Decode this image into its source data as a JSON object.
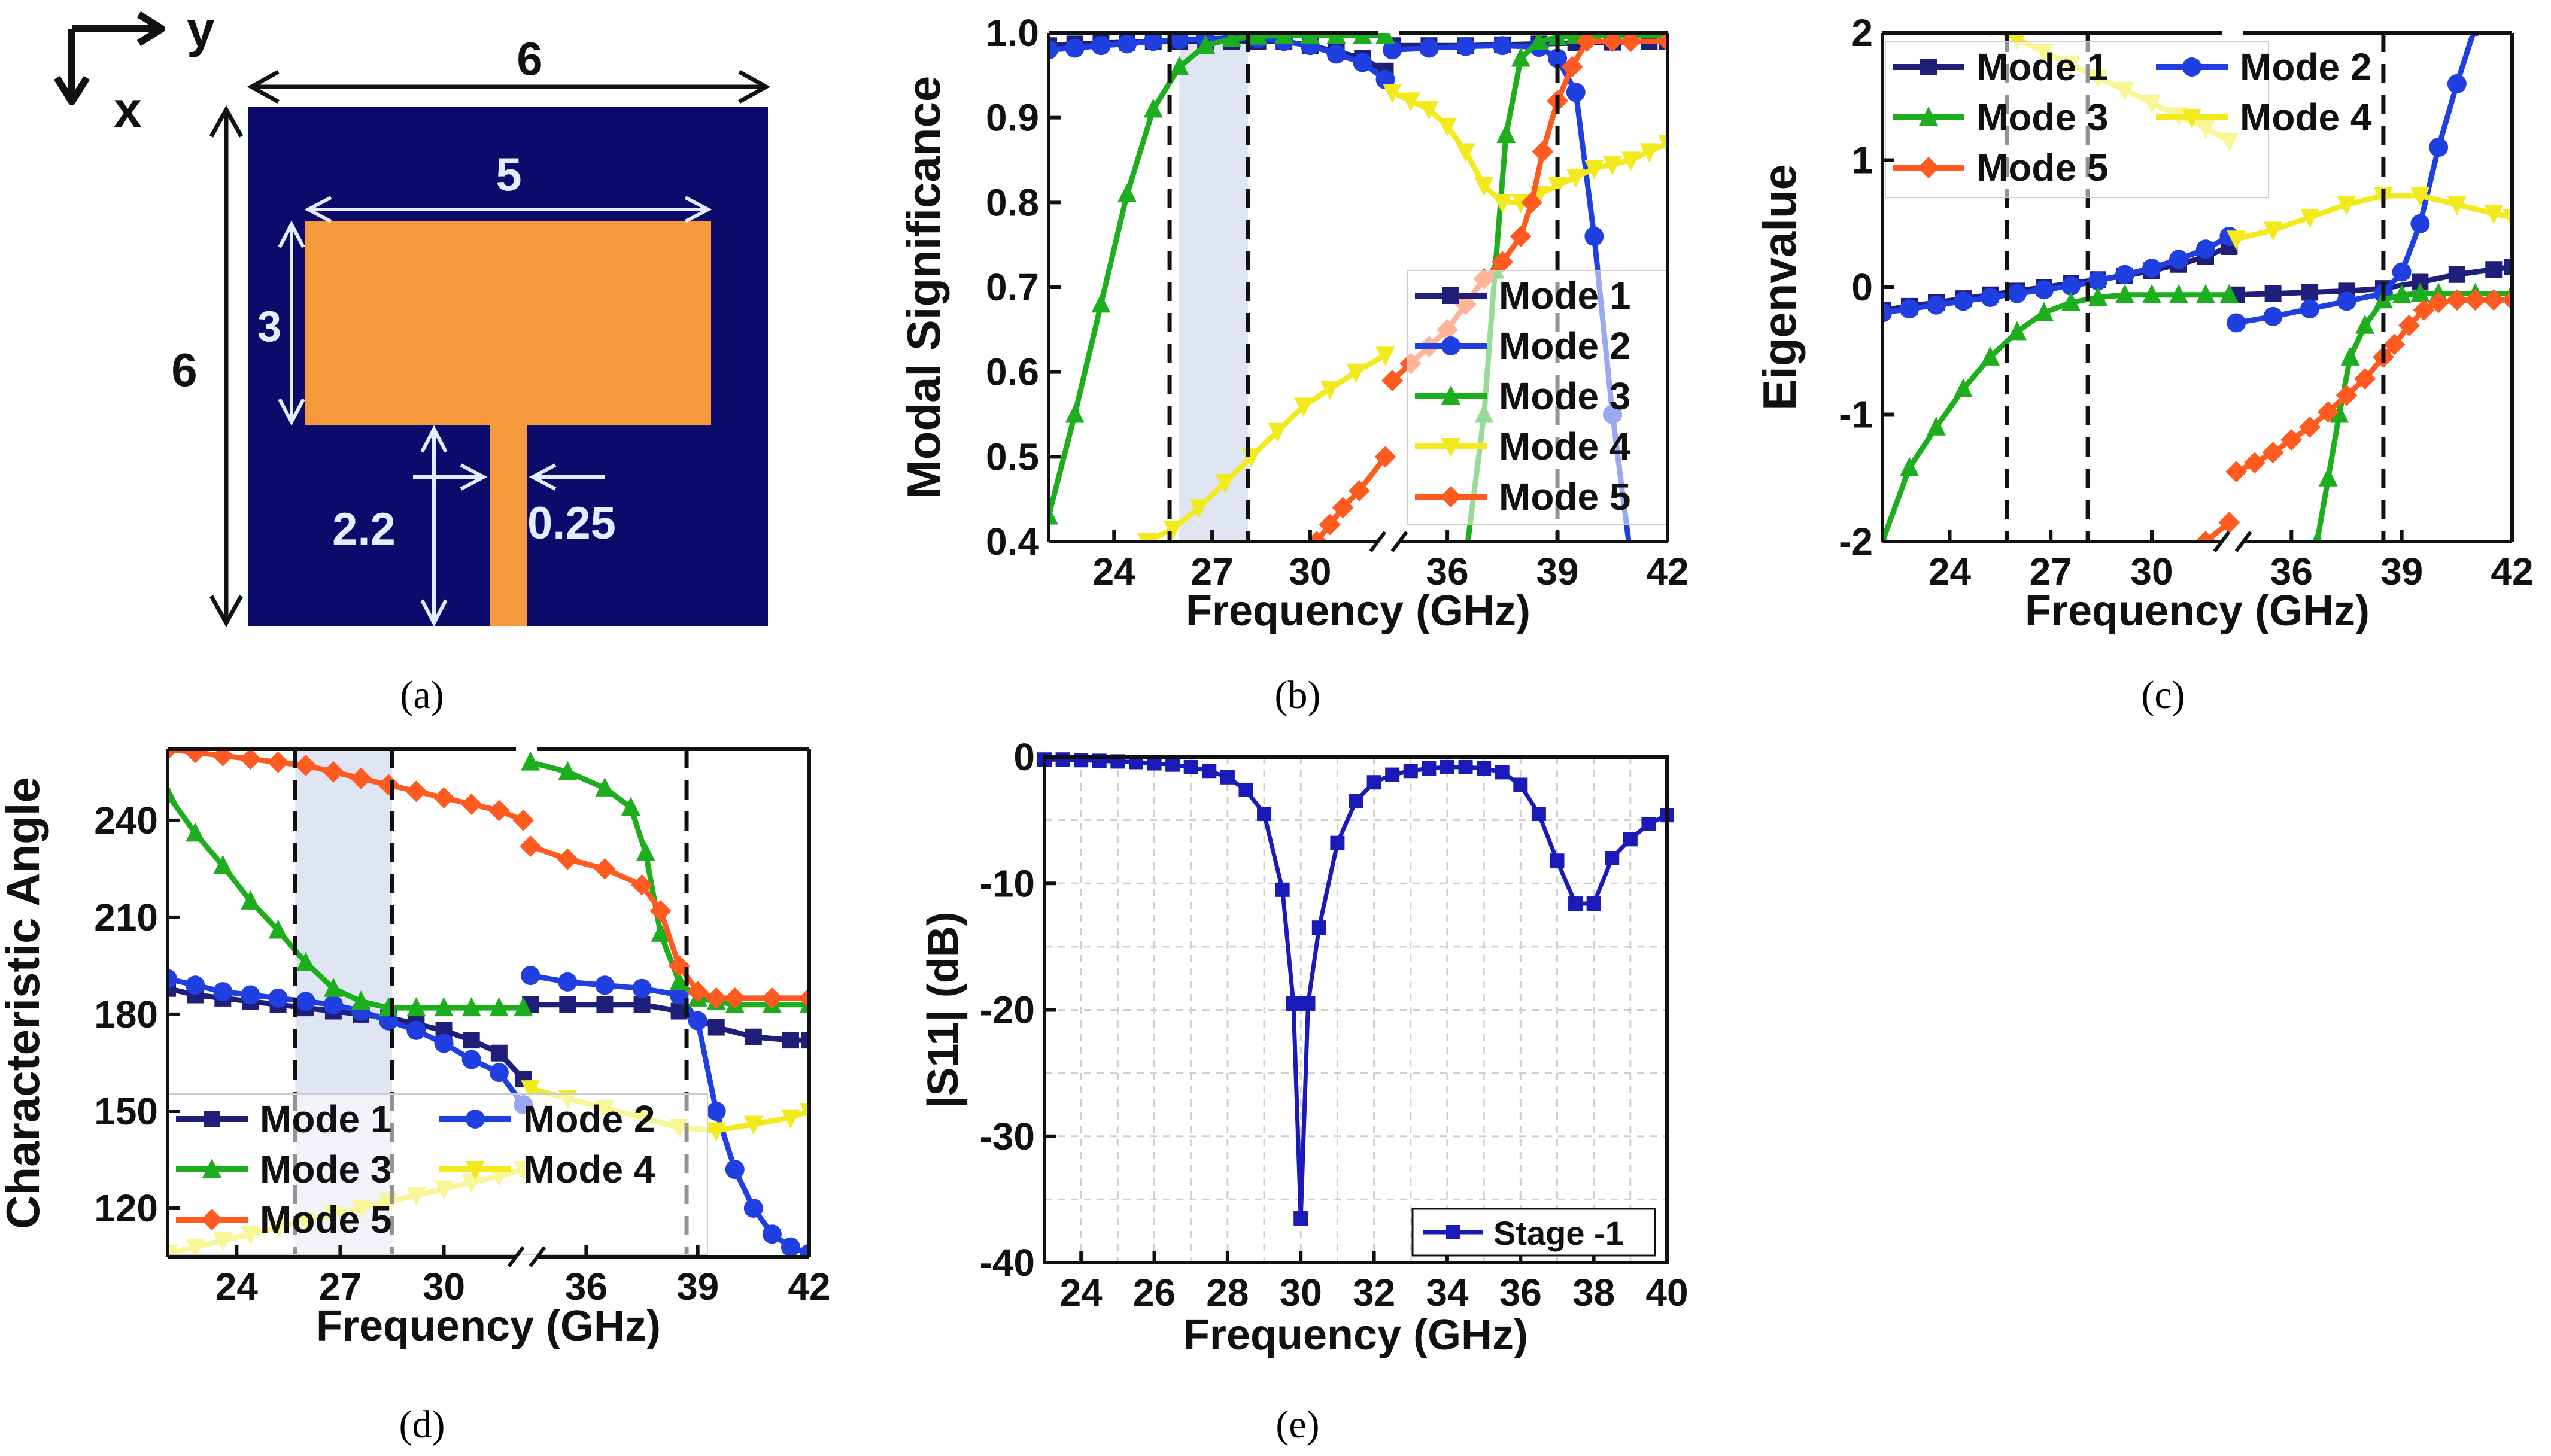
{
  "figure": {
    "panel_labels": [
      "(a)",
      "(b)",
      "(c)",
      "(d)",
      "(e)"
    ]
  },
  "antenna": {
    "axis_y": "y",
    "axis_x": "x",
    "dim_substrate_width": "6",
    "dim_substrate_height": "6",
    "dim_patch_width": "5",
    "dim_patch_height": "3",
    "dim_feed_length": "2.2",
    "dim_feed_width": "0.25",
    "colors": {
      "substrate": "#0b0b6b",
      "copper": "#f7983a",
      "dimension": "#ffffff"
    }
  },
  "colors": {
    "mode1": "#1f1f7a",
    "mode2": "#1f3fe0",
    "mode3": "#1cae1c",
    "mode4": "#f2ea1c",
    "mode5": "#ff5a1f",
    "s11": "#1a1ab8",
    "shade": "#d9e0f0"
  },
  "chart_data": [
    {
      "panel": "b",
      "type": "line",
      "xlabel": "Frequency (GHz)",
      "ylabel": "Modal Significance",
      "ylim": [
        0.4,
        1.0
      ],
      "xticks": [
        "24",
        "27",
        "30",
        "36",
        "39",
        "42"
      ],
      "yticks": [
        "0.4",
        "0.5",
        "0.6",
        "0.7",
        "0.8",
        "0.9",
        "1.0"
      ],
      "legend": [
        "Mode 1",
        "Mode 2",
        "Mode 3",
        "Mode 4",
        "Mode 5"
      ],
      "shade_range": [
        26.0,
        28.1
      ],
      "dashed_lines": [
        25.7,
        28.1,
        39.0
      ],
      "series": [
        {
          "name": "Mode 1",
          "x": [
            22,
            22.8,
            23.6,
            24.4,
            25.2,
            26,
            26.8,
            27.6,
            28.4,
            29.2,
            30,
            30.8,
            31.6,
            32.3,
            34.5,
            35.5,
            36.5,
            37.5,
            38.5,
            39.5,
            40.5,
            41.5,
            42
          ],
          "y": [
            0.985,
            0.987,
            0.988,
            0.989,
            0.99,
            0.99,
            0.99,
            0.99,
            0.99,
            0.99,
            0.985,
            0.978,
            0.97,
            0.955,
            0.985,
            0.985,
            0.985,
            0.986,
            0.987,
            0.988,
            0.989,
            0.99,
            0.99
          ]
        },
        {
          "name": "Mode 2",
          "x": [
            22,
            22.8,
            23.6,
            24.4,
            25.2,
            26,
            26.8,
            27.6,
            28.4,
            29.2,
            30,
            30.8,
            31.6,
            32.3,
            34.5,
            35.5,
            36.5,
            37.5,
            38.5,
            39.0,
            39.5,
            40,
            40.5,
            41
          ],
          "y": [
            0.98,
            0.982,
            0.985,
            0.987,
            0.99,
            0.992,
            0.993,
            0.994,
            0.993,
            0.99,
            0.985,
            0.975,
            0.965,
            0.945,
            0.98,
            0.982,
            0.984,
            0.985,
            0.983,
            0.97,
            0.93,
            0.76,
            0.55,
            0.38
          ]
        },
        {
          "name": "Mode 3",
          "x": [
            22,
            22.8,
            23.6,
            24.4,
            25.2,
            26,
            26.8,
            27.6,
            28.4,
            29.2,
            30,
            30.8,
            31.6,
            32.3,
            36.5,
            37,
            37.3,
            37.6,
            38,
            38.5,
            39,
            39.5,
            40,
            41,
            42
          ],
          "y": [
            0.43,
            0.55,
            0.68,
            0.81,
            0.91,
            0.96,
            0.985,
            0.993,
            0.996,
            0.997,
            0.997,
            0.997,
            0.997,
            0.997,
            0.38,
            0.55,
            0.72,
            0.88,
            0.97,
            0.99,
            0.995,
            0.997,
            0.997,
            0.997,
            0.997
          ]
        },
        {
          "name": "Mode 4",
          "x": [
            25,
            25.8,
            26.6,
            27.4,
            28.2,
            29,
            29.8,
            30.6,
            31.4,
            32.3,
            34.5,
            35,
            35.5,
            36,
            36.5,
            37,
            37.5,
            38,
            38.5,
            39,
            39.5,
            40,
            40.5,
            41,
            41.5,
            42
          ],
          "y": [
            0.4,
            0.415,
            0.44,
            0.47,
            0.5,
            0.53,
            0.56,
            0.58,
            0.6,
            0.62,
            0.93,
            0.92,
            0.91,
            0.89,
            0.86,
            0.82,
            0.8,
            0.8,
            0.81,
            0.82,
            0.83,
            0.84,
            0.845,
            0.85,
            0.86,
            0.87
          ]
        },
        {
          "name": "Mode 5",
          "x": [
            30.2,
            30.6,
            31,
            31.5,
            32.3,
            34.5,
            35,
            35.5,
            36,
            36.5,
            37,
            37.5,
            38,
            38.3,
            38.6,
            39,
            39.4,
            39.8,
            40.5,
            41,
            42
          ],
          "y": [
            0.4,
            0.42,
            0.44,
            0.46,
            0.5,
            0.59,
            0.61,
            0.63,
            0.65,
            0.68,
            0.71,
            0.73,
            0.76,
            0.8,
            0.86,
            0.92,
            0.96,
            0.99,
            0.99,
            0.99,
            0.99
          ]
        }
      ]
    },
    {
      "panel": "c",
      "type": "line",
      "xlabel": "Frequency (GHz)",
      "ylabel": "Eigenvalue",
      "ylim": [
        -2,
        2
      ],
      "xticks": [
        "24",
        "27",
        "30",
        "36",
        "39",
        "42"
      ],
      "yticks": [
        "-2",
        "-1",
        "0",
        "1",
        "2"
      ],
      "legend": [
        "Mode 1",
        "Mode 2",
        "Mode 3",
        "Mode 4",
        "Mode 5"
      ],
      "dashed_lines": [
        25.7,
        28.1,
        38.5
      ],
      "series": [
        {
          "name": "Mode 1",
          "x": [
            22,
            22.8,
            23.6,
            24.4,
            25.2,
            26,
            26.8,
            27.6,
            28.4,
            29.2,
            30,
            30.8,
            31.6,
            32.3,
            34.5,
            35.5,
            36.5,
            37.5,
            38.5,
            39.5,
            40.5,
            41.5,
            42
          ],
          "y": [
            -0.18,
            -0.15,
            -0.12,
            -0.09,
            -0.06,
            -0.03,
            0.0,
            0.03,
            0.06,
            0.09,
            0.13,
            0.18,
            0.24,
            0.32,
            -0.06,
            -0.05,
            -0.04,
            -0.03,
            -0.01,
            0.04,
            0.1,
            0.14,
            0.16
          ]
        },
        {
          "name": "Mode 2",
          "x": [
            22,
            22.8,
            23.6,
            24.4,
            25.2,
            26,
            26.8,
            27.6,
            28.4,
            29.2,
            30,
            30.8,
            31.6,
            32.3,
            34.5,
            35.5,
            36.5,
            37.5,
            38.5,
            39,
            39.5,
            40,
            40.5,
            41
          ],
          "y": [
            -0.2,
            -0.17,
            -0.14,
            -0.11,
            -0.08,
            -0.05,
            -0.02,
            0.01,
            0.05,
            0.1,
            0.15,
            0.22,
            0.3,
            0.4,
            -0.28,
            -0.23,
            -0.17,
            -0.11,
            -0.05,
            0.12,
            0.5,
            1.1,
            1.6,
            2.05
          ]
        },
        {
          "name": "Mode 3",
          "x": [
            22,
            22.8,
            23.6,
            24.4,
            25.2,
            26,
            26.8,
            27.6,
            28.4,
            29.2,
            30,
            30.8,
            31.6,
            32.3,
            36.7,
            37,
            37.3,
            37.6,
            38,
            38.5,
            39,
            39.5,
            40,
            41,
            42
          ],
          "y": [
            -2.0,
            -1.42,
            -1.1,
            -0.8,
            -0.55,
            -0.35,
            -0.2,
            -0.12,
            -0.08,
            -0.06,
            -0.06,
            -0.06,
            -0.06,
            -0.06,
            -2.0,
            -1.5,
            -1.0,
            -0.55,
            -0.3,
            -0.1,
            -0.06,
            -0.05,
            -0.05,
            -0.05,
            -0.05
          ]
        },
        {
          "name": "Mode 4",
          "x": [
            25.2,
            26,
            26.8,
            27.6,
            28.4,
            29.2,
            30,
            30.8,
            31.6,
            32.3,
            34.5,
            35.5,
            36.5,
            37.5,
            38.5,
            39.5,
            40.5,
            41.5,
            42
          ],
          "y": [
            2.05,
            1.95,
            1.85,
            1.75,
            1.65,
            1.55,
            1.45,
            1.35,
            1.25,
            1.15,
            0.38,
            0.45,
            0.55,
            0.65,
            0.72,
            0.72,
            0.65,
            0.58,
            0.55
          ]
        },
        {
          "name": "Mode 5",
          "x": [
            31.6,
            32.3,
            34.5,
            35,
            35.5,
            36,
            36.5,
            37,
            37.5,
            38,
            38.5,
            38.8,
            39.2,
            39.6,
            40,
            40.5,
            41,
            41.5,
            42
          ],
          "y": [
            -2.0,
            -1.85,
            -1.45,
            -1.38,
            -1.3,
            -1.2,
            -1.1,
            -0.98,
            -0.85,
            -0.72,
            -0.55,
            -0.45,
            -0.3,
            -0.18,
            -0.12,
            -0.1,
            -0.1,
            -0.1,
            -0.1
          ]
        }
      ]
    },
    {
      "panel": "d",
      "type": "line",
      "xlabel": "Frequency (GHz)",
      "ylabel": "Characteristic Angle",
      "ylim": [
        105,
        262
      ],
      "xticks": [
        "24",
        "27",
        "30",
        "36",
        "39",
        "42"
      ],
      "yticks": [
        "120",
        "150",
        "180",
        "210",
        "240"
      ],
      "legend": [
        "Mode 1",
        "Mode 2",
        "Mode 3",
        "Mode 4",
        "Mode 5"
      ],
      "shade_range": [
        25.7,
        28.5
      ],
      "dashed_lines": [
        25.7,
        28.5,
        38.7
      ],
      "series": [
        {
          "name": "Mode 1",
          "x": [
            22,
            22.8,
            23.6,
            24.4,
            25.2,
            26,
            26.8,
            27.6,
            28.4,
            29.2,
            30,
            30.8,
            31.6,
            32.3,
            34.5,
            35.5,
            36.5,
            37.5,
            38.5,
            39.5,
            40.5,
            41.5,
            42
          ],
          "y": [
            188,
            186,
            185,
            184,
            183,
            182,
            181,
            180,
            179,
            177,
            175,
            172,
            168,
            160,
            183,
            183,
            183,
            183,
            181,
            176,
            173,
            172,
            172
          ]
        },
        {
          "name": "Mode 2",
          "x": [
            22,
            22.8,
            23.6,
            24.4,
            25.2,
            26,
            26.8,
            27.6,
            28.4,
            29.2,
            30,
            30.8,
            31.6,
            32.3,
            34.5,
            35.5,
            36.5,
            37.5,
            38.5,
            39,
            39.5,
            40,
            40.5,
            41,
            41.5,
            42
          ],
          "y": [
            191,
            189,
            187,
            186,
            185,
            184,
            183,
            181,
            178,
            175,
            171,
            166,
            162,
            152,
            192,
            190,
            189,
            188,
            186,
            178,
            150,
            132,
            120,
            112,
            108,
            106
          ]
        },
        {
          "name": "Mode 3",
          "x": [
            22,
            22.8,
            23.6,
            24.4,
            25.2,
            26,
            26.8,
            27.6,
            28.4,
            29.2,
            30,
            30.8,
            31.6,
            32.3,
            34.5,
            35.5,
            36.5,
            37.2,
            37.6,
            38,
            38.5,
            39,
            39.5,
            40,
            41,
            42
          ],
          "y": [
            248,
            236,
            226,
            215,
            206,
            196,
            188,
            184,
            182,
            182,
            182,
            182,
            182,
            182,
            258,
            255,
            250,
            244,
            230,
            205,
            190,
            185,
            184,
            183,
            183,
            183
          ]
        },
        {
          "name": "Mode 4",
          "x": [
            22,
            22.8,
            23.6,
            24.4,
            25.2,
            26,
            26.8,
            27.6,
            28.4,
            29.2,
            30,
            30.8,
            31.6,
            32.3,
            34.5,
            35.5,
            36.5,
            37.5,
            38.5,
            39.5,
            40.5,
            41.5,
            42
          ],
          "y": [
            106,
            108,
            110,
            112,
            114,
            116,
            118,
            120,
            122,
            124,
            126,
            128,
            130,
            132,
            157,
            154,
            151,
            148,
            145,
            144,
            146,
            148,
            150
          ]
        },
        {
          "name": "Mode 5",
          "x": [
            22,
            22.8,
            23.6,
            24.4,
            25.2,
            26,
            26.8,
            27.6,
            28.4,
            29.2,
            30,
            30.8,
            31.6,
            32.3,
            34.5,
            35.5,
            36.5,
            37.5,
            38,
            38.5,
            39,
            39.5,
            40,
            41,
            42
          ],
          "y": [
            262,
            261,
            260,
            259,
            258,
            257,
            255,
            253,
            251,
            249,
            247,
            245,
            243,
            240,
            232,
            228,
            225,
            220,
            212,
            195,
            187,
            185,
            185,
            185,
            185
          ]
        }
      ]
    },
    {
      "panel": "e",
      "type": "line",
      "xlabel": "Frequency (GHz)",
      "ylabel": "|S11| (dB)",
      "xlim": [
        23,
        40
      ],
      "ylim": [
        -40,
        0
      ],
      "xticks": [
        "24",
        "26",
        "28",
        "30",
        "32",
        "34",
        "36",
        "38",
        "40"
      ],
      "yticks": [
        "0",
        "-10",
        "-20",
        "-30",
        "-40"
      ],
      "legend": [
        "Stage -1"
      ],
      "grid": true,
      "series": [
        {
          "name": "Stage -1",
          "x": [
            23,
            23.5,
            24,
            24.5,
            25,
            25.5,
            26,
            26.5,
            27,
            27.5,
            28,
            28.5,
            29,
            29.5,
            29.8,
            30,
            30.2,
            30.5,
            31,
            31.5,
            32,
            32.5,
            33,
            33.5,
            34,
            34.5,
            35,
            35.5,
            36,
            36.5,
            37,
            37.5,
            38,
            38.5,
            39,
            39.5,
            40
          ],
          "y": [
            -0.2,
            -0.2,
            -0.25,
            -0.3,
            -0.35,
            -0.4,
            -0.5,
            -0.6,
            -0.8,
            -1.1,
            -1.6,
            -2.6,
            -4.5,
            -10.5,
            -19.5,
            -36.5,
            -19.5,
            -13.5,
            -6.8,
            -3.5,
            -2.0,
            -1.4,
            -1.1,
            -0.9,
            -0.8,
            -0.8,
            -0.9,
            -1.2,
            -2.2,
            -4.5,
            -8.2,
            -11.6,
            -11.6,
            -8.0,
            -6.5,
            -5.3,
            -4.6
          ]
        }
      ]
    }
  ]
}
